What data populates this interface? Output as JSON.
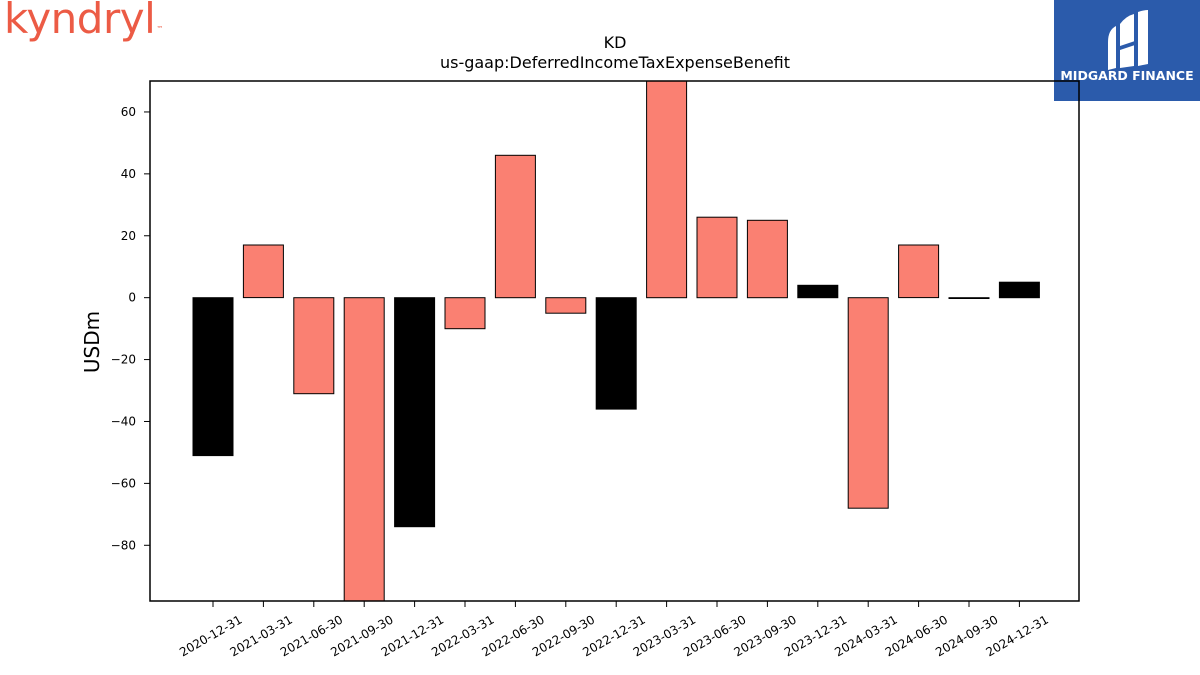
{
  "branding": {
    "left_logo_text": "kyndryl",
    "right_logo_text": "MIDGARD FINANCE",
    "left_logo_color": "#ec5b45",
    "right_logo_bg": "#2b5bab"
  },
  "chart_data": {
    "type": "bar",
    "title": "KD",
    "subtitle": "us-gaap:DeferredIncomeTaxExpenseBenefit",
    "xlabel": "",
    "ylabel": "USDm",
    "ylim": [
      -98,
      70
    ],
    "yticks": [
      60,
      40,
      20,
      0,
      -20,
      -40,
      -60,
      -80
    ],
    "ytick_labels": [
      "60",
      "40",
      "20",
      "0",
      "−20",
      "−40",
      "−60",
      "−80"
    ],
    "grid": false,
    "categories": [
      "2020-12-31",
      "2021-03-31",
      "2021-06-30",
      "2021-09-30",
      "2021-12-31",
      "2022-03-31",
      "2022-06-30",
      "2022-09-30",
      "2022-12-31",
      "2023-03-31",
      "2023-06-30",
      "2023-09-30",
      "2023-12-31",
      "2024-03-31",
      "2024-06-30",
      "2024-09-30",
      "2024-12-31"
    ],
    "values": [
      -51,
      17,
      -31,
      -98,
      -74,
      -10,
      46,
      -5,
      -36,
      70,
      26,
      25,
      4,
      -68,
      17,
      0,
      5
    ],
    "bar_colors": [
      "#000000",
      "#fa8072",
      "#fa8072",
      "#fa8072",
      "#000000",
      "#fa8072",
      "#fa8072",
      "#fa8072",
      "#000000",
      "#fa8072",
      "#fa8072",
      "#fa8072",
      "#000000",
      "#fa8072",
      "#fa8072",
      "#000000",
      "#000000"
    ]
  }
}
